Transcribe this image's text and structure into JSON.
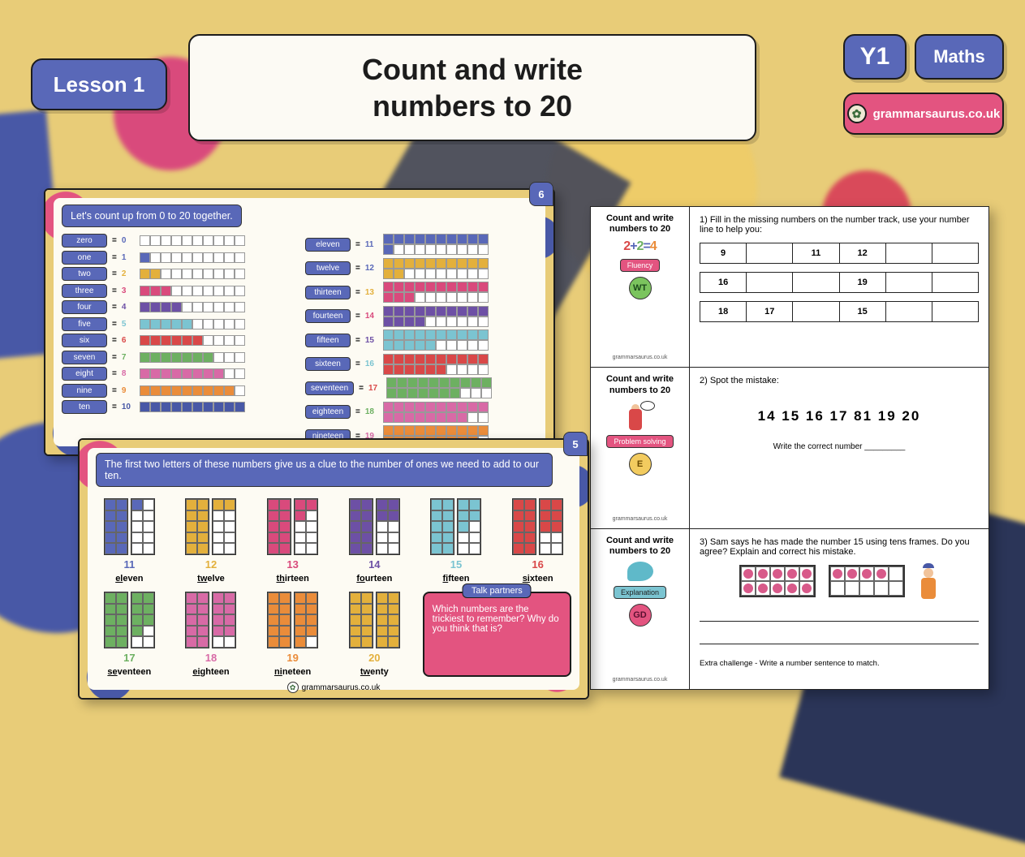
{
  "colors": {
    "primary_blue": "#5968b8",
    "accent_pink": "#e35480",
    "bg_yellow": "#e8cc78",
    "card_cream": "#fdfbf3",
    "navy": "#2b3558"
  },
  "header": {
    "lesson": "Lesson 1",
    "title_line1": "Count and write",
    "title_line2": "numbers to 20",
    "year": "Y1",
    "subject": "Maths",
    "brand": "grammarsaurus.co.uk"
  },
  "slide_a": {
    "page_num": "6",
    "banner": "Let's count up from 0 to 20 together.",
    "left_col": [
      {
        "word": "zero",
        "num": "0",
        "fill": 0,
        "color": "f1"
      },
      {
        "word": "one",
        "num": "1",
        "fill": 1,
        "color": "f1"
      },
      {
        "word": "two",
        "num": "2",
        "fill": 2,
        "color": "f2"
      },
      {
        "word": "three",
        "num": "3",
        "fill": 3,
        "color": "f3"
      },
      {
        "word": "four",
        "num": "4",
        "fill": 4,
        "color": "f4"
      },
      {
        "word": "five",
        "num": "5",
        "fill": 5,
        "color": "f5"
      },
      {
        "word": "six",
        "num": "6",
        "fill": 6,
        "color": "f6"
      },
      {
        "word": "seven",
        "num": "7",
        "fill": 7,
        "color": "f7"
      },
      {
        "word": "eight",
        "num": "8",
        "fill": 8,
        "color": "f8"
      },
      {
        "word": "nine",
        "num": "9",
        "fill": 9,
        "color": "f9"
      },
      {
        "word": "ten",
        "num": "10",
        "fill": 10,
        "color": "f10"
      }
    ],
    "right_col": [
      {
        "word": "eleven",
        "num": "11",
        "fill": 11,
        "color": "f1"
      },
      {
        "word": "twelve",
        "num": "12",
        "fill": 12,
        "color": "f2"
      },
      {
        "word": "thirteen",
        "num": "13",
        "fill": 13,
        "color": "f3"
      },
      {
        "word": "fourteen",
        "num": "14",
        "fill": 14,
        "color": "f4"
      },
      {
        "word": "fifteen",
        "num": "15",
        "fill": 15,
        "color": "f5"
      },
      {
        "word": "sixteen",
        "num": "16",
        "fill": 16,
        "color": "f6"
      },
      {
        "word": "seventeen",
        "num": "17",
        "fill": 17,
        "color": "f7"
      },
      {
        "word": "eighteen",
        "num": "18",
        "fill": 18,
        "color": "f8"
      },
      {
        "word": "nineteen",
        "num": "19",
        "fill": 19,
        "color": "f9"
      }
    ]
  },
  "slide_b": {
    "page_num": "5",
    "banner": "The first two letters of these numbers give us a clue to the number of ones we need to add to our ten.",
    "teens": [
      {
        "num": "11",
        "word": "eleven",
        "c1": "#5968b8",
        "c2": "#5968b8",
        "extra": 1
      },
      {
        "num": "12",
        "word": "twelve",
        "c1": "#e3b03c",
        "c2": "#e3b03c",
        "extra": 2
      },
      {
        "num": "13",
        "word": "thirteen",
        "c1": "#d94a7c",
        "c2": "#d94a7c",
        "extra": 3
      },
      {
        "num": "14",
        "word": "fourteen",
        "c1": "#6d50a5",
        "c2": "#6d50a5",
        "extra": 4
      },
      {
        "num": "15",
        "word": "fifteen",
        "c1": "#7bc4d1",
        "c2": "#7bc4d1",
        "extra": 5
      },
      {
        "num": "16",
        "word": "sixteen",
        "c1": "#d94848",
        "c2": "#d94848",
        "extra": 6
      },
      {
        "num": "17",
        "word": "seventeen",
        "c1": "#6db061",
        "c2": "#6db061",
        "extra": 7
      },
      {
        "num": "18",
        "word": "eighteen",
        "c1": "#d86aa6",
        "c2": "#d86aa6",
        "extra": 8
      },
      {
        "num": "19",
        "word": "nineteen",
        "c1": "#ea8c3a",
        "c2": "#ea8c3a",
        "extra": 9
      },
      {
        "num": "20",
        "word": "twenty",
        "c1": "#e3b03c",
        "c2": "#e3b03c",
        "extra": 10
      }
    ],
    "talk_header": "Talk partners",
    "talk_text": "Which numbers are the trickiest to remember? Why do you think that is?",
    "footer_brand": "grammarsaurus.co.uk"
  },
  "worksheet": {
    "side_title": "Count and write numbers to 20",
    "brand": "grammarsaurus.co.uk",
    "q1": {
      "text": "1) Fill in the missing numbers on the number track, use your number line to help you:",
      "fluency_label": "Fluency",
      "badge": "WT",
      "track_a": [
        "9",
        "",
        "11",
        "12",
        "",
        ""
      ],
      "track_b": [
        "16",
        "",
        "",
        "19",
        "",
        ""
      ],
      "track_c": [
        "18",
        "17",
        "",
        "15",
        "",
        ""
      ]
    },
    "q2": {
      "text": "2) Spot the mistake:",
      "ps_label": "Problem solving",
      "badge": "E",
      "sequence": "14  15  16  17  81  19  20",
      "prompt": "Write the correct number _________"
    },
    "q3": {
      "text": "3) Sam says he has made the number 15 using tens frames. Do you agree? Explain and correct his mistake.",
      "exp_label": "Explanation",
      "badge": "GD",
      "frame1_fill": 10,
      "frame2_fill": 4,
      "extra": "Extra challenge - Write a number sentence to match."
    }
  }
}
